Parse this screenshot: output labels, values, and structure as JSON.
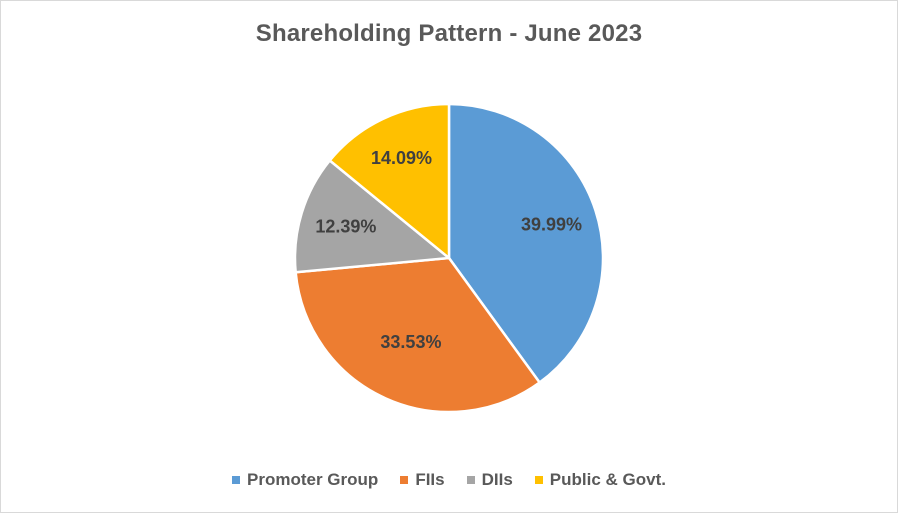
{
  "chart_data": {
    "type": "pie",
    "title": "Shareholding Pattern - June 2023",
    "legend_position": "bottom",
    "slices": [
      {
        "name": "Promoter Group",
        "value": 39.99,
        "label": "39.99%",
        "color": "#5b9bd5"
      },
      {
        "name": "FIIs",
        "value": 33.53,
        "label": "33.53%",
        "color": "#ed7d31"
      },
      {
        "name": "DIIs",
        "value": 12.39,
        "label": "12.39%",
        "color": "#a5a5a5"
      },
      {
        "name": "Public & Govt.",
        "value": 14.09,
        "label": "14.09%",
        "color": "#ffc000"
      }
    ]
  }
}
